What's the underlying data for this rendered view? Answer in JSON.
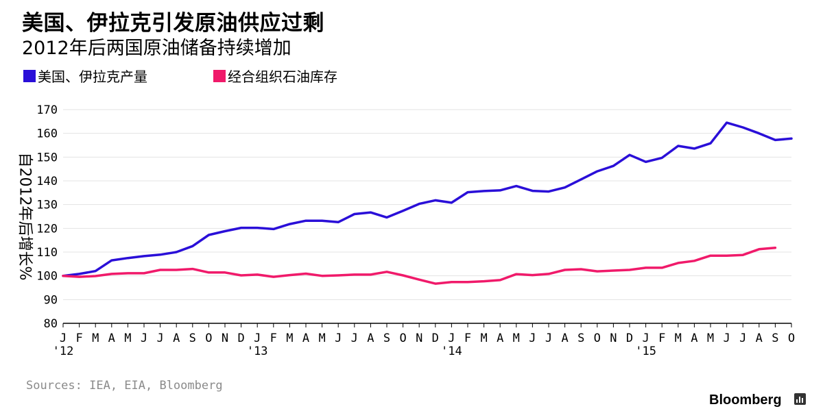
{
  "title": "美国、伊拉克引发原油供应过剩",
  "subtitle": "2012年后两国原油储备持续增加",
  "legend": [
    {
      "label": "美国、伊拉克产量",
      "color": "#2a0fd8"
    },
    {
      "label": "经合组织石油库存",
      "color": "#f01a6a"
    }
  ],
  "source": "Sources: IEA, EIA, Bloomberg",
  "brand": "Bloomberg",
  "brand_icon": "bloomberg-terminal-icon",
  "chart_data": {
    "type": "line",
    "ylabel": "自2012年后增长%",
    "ylim": [
      80,
      170
    ],
    "yticks": [
      80,
      90,
      100,
      110,
      120,
      130,
      140,
      150,
      160,
      170
    ],
    "month_labels": [
      "J",
      "F",
      "M",
      "A",
      "M",
      "J",
      "J",
      "A",
      "S",
      "O",
      "N",
      "D",
      "J",
      "F",
      "M",
      "A",
      "M",
      "J",
      "J",
      "A",
      "S",
      "O",
      "N",
      "D",
      "J",
      "F",
      "M",
      "A",
      "M",
      "J",
      "J",
      "A",
      "S",
      "O",
      "N",
      "D",
      "J",
      "F",
      "M",
      "A",
      "M",
      "J",
      "J",
      "A",
      "S",
      "O"
    ],
    "year_labels": [
      {
        "index": 0,
        "label": "'12"
      },
      {
        "index": 12,
        "label": "'13"
      },
      {
        "index": 24,
        "label": "'14"
      },
      {
        "index": 36,
        "label": "'15"
      }
    ],
    "series": [
      {
        "name": "美国、伊拉克产量",
        "color": "#2a0fd8",
        "values": [
          100,
          100.8,
          102,
          106.5,
          107.5,
          108.3,
          108.9,
          110,
          112.5,
          117.2,
          118.8,
          120.2,
          120.2,
          119.7,
          121.8,
          123.2,
          123.2,
          122.6,
          126,
          126.7,
          124.6,
          127.4,
          130.3,
          131.8,
          130.8,
          135.2,
          135.7,
          136,
          137.8,
          135.8,
          135.5,
          137.2,
          140.6,
          144,
          146.3,
          150.9,
          148,
          149.7,
          154.7,
          153.6,
          155.8,
          164.5,
          162.5,
          160,
          157.2,
          157.8
        ]
      },
      {
        "name": "经合组织石油库存",
        "color": "#f01a6a",
        "values": [
          100,
          99.6,
          99.9,
          100.8,
          101.1,
          101.1,
          102.5,
          102.5,
          102.9,
          101.4,
          101.4,
          100.2,
          100.5,
          99.6,
          100.3,
          100.9,
          100,
          100.2,
          100.5,
          100.5,
          101.7,
          100.2,
          98.4,
          96.7,
          97.4,
          97.4,
          97.7,
          98.2,
          100.7,
          100.3,
          100.8,
          102.5,
          102.8,
          101.9,
          102.2,
          102.5,
          103.4,
          103.4,
          105.4,
          106.3,
          108.5,
          108.5,
          108.8,
          111.2,
          111.8
        ]
      }
    ]
  }
}
